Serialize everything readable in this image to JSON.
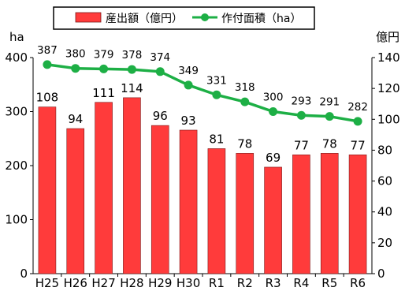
{
  "chart_data": {
    "type": "bar",
    "categories": [
      "H25",
      "H26",
      "H27",
      "H28",
      "H29",
      "H30",
      "R1",
      "R2",
      "R3",
      "R4",
      "R5",
      "R6"
    ],
    "series": [
      {
        "name": "産出額（億円）",
        "type": "bar",
        "axis": "right",
        "values": [
          108,
          94,
          111,
          114,
          96,
          93,
          81,
          78,
          69,
          77,
          78,
          77
        ],
        "color": "#ff3b3b"
      },
      {
        "name": "作付面積（ha）",
        "type": "line",
        "axis": "left",
        "values": [
          387,
          380,
          379,
          378,
          374,
          349,
          331,
          318,
          300,
          293,
          291,
          282
        ],
        "color": "#1daf45"
      }
    ],
    "left_axis": {
      "unit": "ha",
      "ylim": [
        0,
        400
      ],
      "ticks": [
        0,
        100,
        200,
        300,
        400
      ]
    },
    "right_axis": {
      "unit": "億円",
      "ylim": [
        0,
        140
      ],
      "ticks": [
        0,
        20,
        40,
        60,
        80,
        100,
        120,
        140
      ]
    },
    "grid": false,
    "legend_position": "top"
  }
}
